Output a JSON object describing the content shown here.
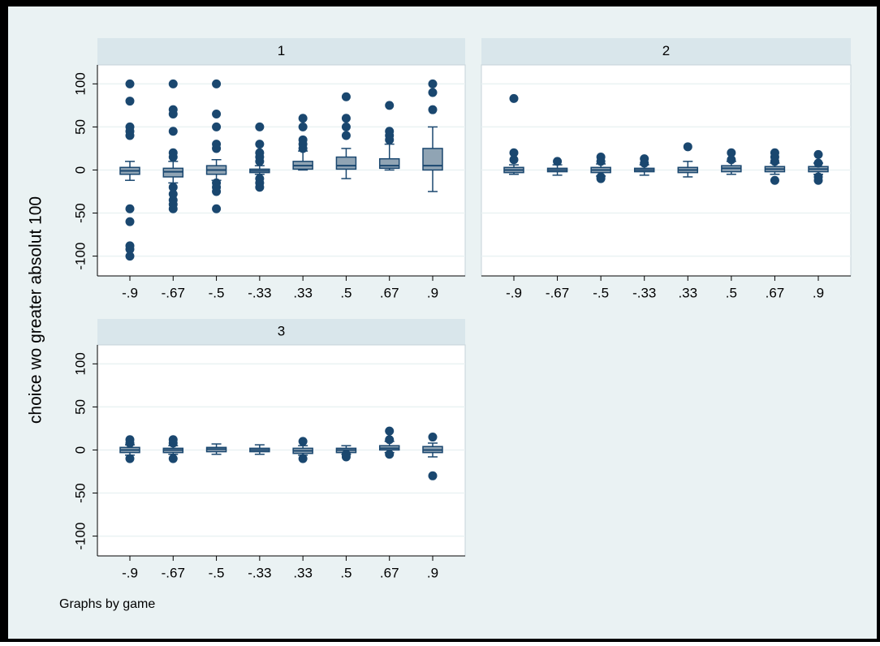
{
  "chart_data": [
    {
      "type": "box",
      "title": "1",
      "categories": [
        "-.9",
        "-.67",
        "-.5",
        "-.33",
        ".33",
        ".5",
        ".67",
        ".9"
      ],
      "ylim": [
        -123,
        122
      ],
      "yticks": [
        -100,
        -50,
        0,
        50,
        100
      ],
      "grid": true,
      "box_color": "#90a4b4",
      "line_color": "#1a476f",
      "boxes": [
        {
          "min": -12,
          "q1": -5,
          "median": -1,
          "q3": 3,
          "max": 10,
          "outliers": [
            100,
            80,
            50,
            45,
            40,
            -45,
            -60,
            -88,
            -92,
            -100
          ]
        },
        {
          "min": -15,
          "q1": -8,
          "median": -2,
          "q3": 2,
          "max": 10,
          "outliers": [
            100,
            70,
            65,
            45,
            20,
            15,
            -20,
            -28,
            -35,
            -40,
            -45
          ]
        },
        {
          "min": -12,
          "q1": -5,
          "median": 0,
          "q3": 5,
          "max": 12,
          "outliers": [
            100,
            65,
            50,
            30,
            25,
            -15,
            -20,
            -25,
            -45
          ]
        },
        {
          "min": -5,
          "q1": -3,
          "median": -1,
          "q3": 1,
          "max": 5,
          "outliers": [
            50,
            30,
            20,
            15,
            10,
            -10,
            -15,
            -20
          ]
        },
        {
          "min": 0,
          "q1": 1,
          "median": 5,
          "q3": 10,
          "max": 22,
          "outliers": [
            60,
            50,
            35,
            30,
            25
          ]
        },
        {
          "min": -10,
          "q1": 1,
          "median": 5,
          "q3": 15,
          "max": 25,
          "outliers": [
            85,
            60,
            50,
            40
          ]
        },
        {
          "min": 0,
          "q1": 2,
          "median": 5,
          "q3": 13,
          "max": 30,
          "outliers": [
            75,
            45,
            40,
            35
          ]
        },
        {
          "min": -25,
          "q1": 0,
          "median": 5,
          "q3": 25,
          "max": 50,
          "outliers": [
            100,
            90,
            70
          ]
        }
      ]
    },
    {
      "type": "box",
      "title": "2",
      "categories": [
        "-.9",
        "-.67",
        "-.5",
        "-.33",
        ".33",
        ".5",
        ".67",
        ".9"
      ],
      "ylim": [
        -123,
        122
      ],
      "yticks": [
        -100,
        -50,
        0,
        50,
        100
      ],
      "grid": true,
      "box_color": "#90a4b4",
      "line_color": "#1a476f",
      "boxes": [
        {
          "min": -5,
          "q1": -3,
          "median": 0,
          "q3": 3,
          "max": 6,
          "outliers": [
            83,
            20,
            12
          ]
        },
        {
          "min": -6,
          "q1": -2,
          "median": 0,
          "q3": 2,
          "max": 6,
          "outliers": [
            10
          ]
        },
        {
          "min": -7,
          "q1": -3,
          "median": 0,
          "q3": 3,
          "max": 7,
          "outliers": [
            15,
            10,
            -8,
            -10
          ]
        },
        {
          "min": -6,
          "q1": -2,
          "median": 0,
          "q3": 2,
          "max": 6,
          "outliers": [
            13,
            8
          ]
        },
        {
          "min": -8,
          "q1": -3,
          "median": 0,
          "q3": 3,
          "max": 10,
          "outliers": [
            27
          ]
        },
        {
          "min": -5,
          "q1": -2,
          "median": 2,
          "q3": 5,
          "max": 10,
          "outliers": [
            20,
            12
          ]
        },
        {
          "min": -5,
          "q1": -2,
          "median": 1,
          "q3": 4,
          "max": 8,
          "outliers": [
            20,
            15,
            10,
            -12
          ]
        },
        {
          "min": -5,
          "q1": -2,
          "median": 1,
          "q3": 4,
          "max": 8,
          "outliers": [
            18,
            8,
            -8,
            -12
          ]
        }
      ]
    },
    {
      "type": "box",
      "title": "3",
      "categories": [
        "-.9",
        "-.67",
        "-.5",
        "-.33",
        ".33",
        ".5",
        ".67",
        ".9"
      ],
      "ylim": [
        -123,
        122
      ],
      "yticks": [
        -100,
        -50,
        0,
        50,
        100
      ],
      "grid": true,
      "box_color": "#90a4b4",
      "line_color": "#1a476f",
      "boxes": [
        {
          "min": -6,
          "q1": -3,
          "median": 0,
          "q3": 3,
          "max": 6,
          "outliers": [
            12,
            8,
            -10
          ]
        },
        {
          "min": -5,
          "q1": -3,
          "median": 0,
          "q3": 2,
          "max": 5,
          "outliers": [
            12,
            8,
            -10
          ]
        },
        {
          "min": -5,
          "q1": -2,
          "median": 1,
          "q3": 3,
          "max": 7,
          "outliers": []
        },
        {
          "min": -5,
          "q1": -2,
          "median": 0,
          "q3": 2,
          "max": 6,
          "outliers": []
        },
        {
          "min": -6,
          "q1": -4,
          "median": -1,
          "q3": 2,
          "max": 5,
          "outliers": [
            10,
            -10
          ]
        },
        {
          "min": -5,
          "q1": -3,
          "median": 0,
          "q3": 2,
          "max": 5,
          "outliers": [
            -5,
            -8
          ]
        },
        {
          "min": -3,
          "q1": 0,
          "median": 2,
          "q3": 5,
          "max": 10,
          "outliers": [
            22,
            12,
            -5
          ]
        },
        {
          "min": -8,
          "q1": -3,
          "median": 0,
          "q3": 4,
          "max": 8,
          "outliers": [
            15,
            -30
          ]
        }
      ]
    }
  ],
  "ylabel": "choice wo greater absolut 100",
  "note": "Graphs by game"
}
